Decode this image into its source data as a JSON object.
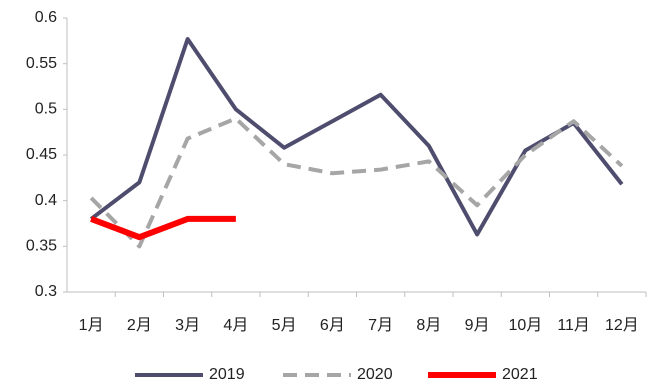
{
  "chart_data": {
    "type": "line",
    "categories": [
      "1月",
      "2月",
      "3月",
      "4月",
      "5月",
      "6月",
      "7月",
      "8月",
      "9月",
      "10月",
      "11月",
      "12月"
    ],
    "series": [
      {
        "name": "2019",
        "color": "#4f4d6e",
        "dash": false,
        "values": [
          0.38,
          0.42,
          0.577,
          0.5,
          0.458,
          0.487,
          0.516,
          0.46,
          0.363,
          0.455,
          0.485,
          0.418
        ]
      },
      {
        "name": "2020",
        "color": "#a6a6a6",
        "dash": true,
        "values": [
          0.403,
          0.35,
          0.468,
          0.49,
          0.44,
          0.43,
          0.434,
          0.443,
          0.395,
          0.45,
          0.487,
          0.438
        ]
      },
      {
        "name": "2021",
        "color": "#ff0000",
        "dash": false,
        "values": [
          0.38,
          0.36,
          0.38,
          0.38,
          null,
          null,
          null,
          null,
          null,
          null,
          null,
          null
        ]
      }
    ],
    "ylim": [
      0.3,
      0.6
    ],
    "yticks": [
      0.3,
      0.35,
      0.4,
      0.45,
      0.5,
      0.55,
      0.6
    ],
    "grid": false,
    "legend": "bottom"
  }
}
